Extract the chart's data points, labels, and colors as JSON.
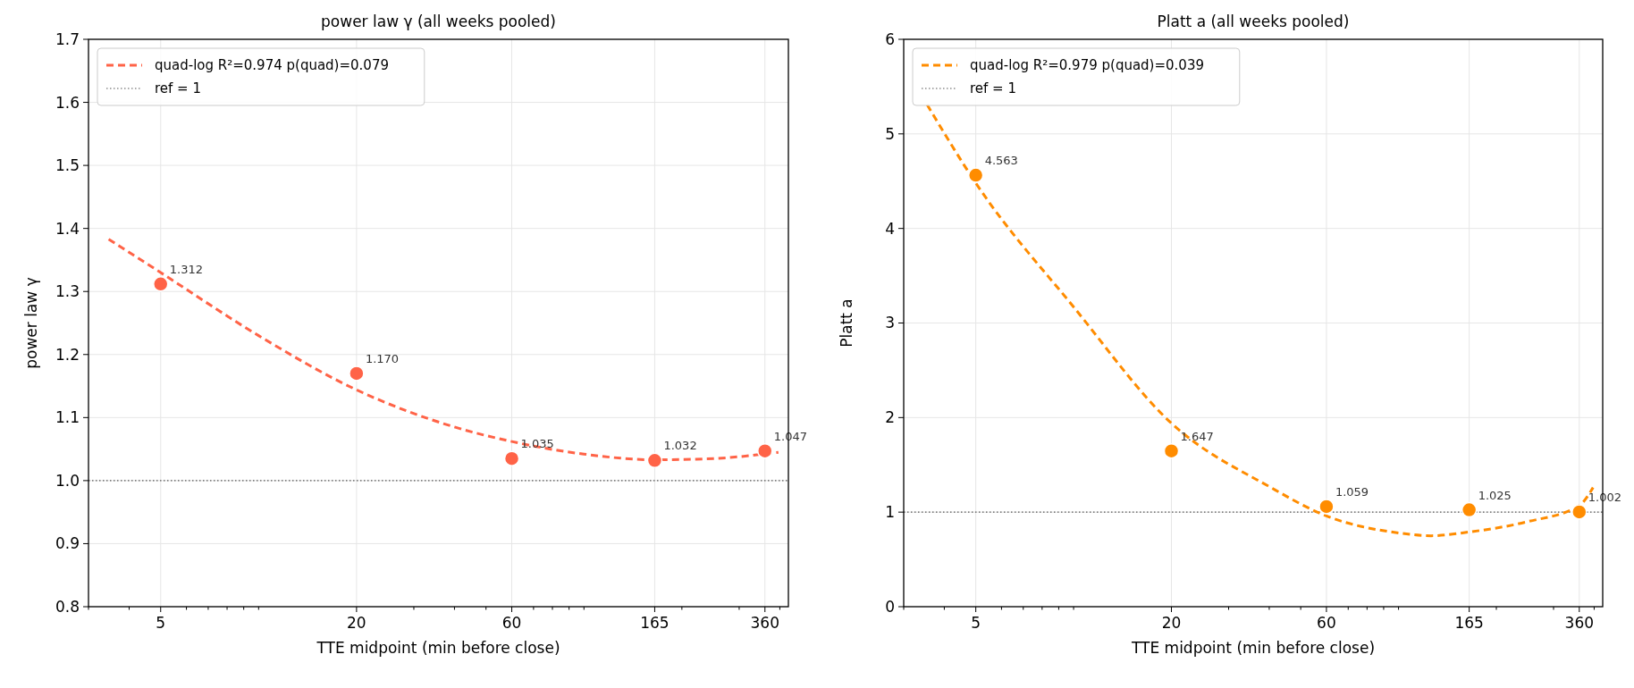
{
  "chart_data": [
    {
      "type": "scatter",
      "title": "power law  γ  (all weeks pooled)",
      "xlabel": "TTE midpoint (min before close)",
      "ylabel": "power law  γ",
      "log": "x",
      "grid": true,
      "legend": "top left",
      "marker": "circle",
      "xlim": [
        3,
        425
      ],
      "xticks": [
        {
          "value": 3,
          "label": null
        },
        {
          "value": 4,
          "label": null
        },
        5,
        {
          "value": 6,
          "label": null
        },
        {
          "value": 7,
          "label": null
        },
        {
          "value": 8,
          "label": null
        },
        {
          "value": 9,
          "label": null
        },
        {
          "value": 10,
          "label": null
        },
        20,
        {
          "value": 30,
          "label": null
        },
        {
          "value": 40,
          "label": null
        },
        {
          "value": 50,
          "label": null
        },
        60,
        {
          "value": 70,
          "label": null
        },
        {
          "value": 80,
          "label": null
        },
        {
          "value": 90,
          "label": null
        },
        {
          "value": 100,
          "label": null
        },
        165,
        {
          "value": 200,
          "label": null
        },
        {
          "value": 300,
          "label": null
        },
        360,
        {
          "value": 400,
          "label": null
        }
      ],
      "ylim": [
        0.8,
        1.7
      ],
      "yticks": [
        {
          "value": 0.8,
          "label": "0.8"
        },
        {
          "value": 0.9,
          "label": "0.9"
        },
        {
          "value": 1.0,
          "label": "1.0"
        },
        {
          "value": 1.1,
          "label": "1.1"
        },
        {
          "value": 1.2,
          "label": "1.2"
        },
        {
          "value": 1.3,
          "label": "1.3"
        },
        {
          "value": 1.4,
          "label": "1.4"
        },
        {
          "value": 1.5,
          "label": "1.5"
        },
        {
          "value": 1.6,
          "label": "1.6"
        },
        {
          "value": 1.7,
          "label": "1.7"
        }
      ],
      "ref_lines": [
        {
          "axis": "y",
          "value": 1,
          "label": "ref = 1",
          "color": "#555555",
          "line_style": "dotted"
        }
      ],
      "series": [
        {
          "type": "line",
          "name": "quad-log  R²=0.974  p(quad)=0.079",
          "color": "#ff6347",
          "line_style": "dashed",
          "marker": "none",
          "x": [
            3.46,
            5,
            10,
            20,
            40,
            60,
            100,
            165,
            250,
            396
          ],
          "values": [
            1.383,
            1.33,
            1.23,
            1.144,
            1.085,
            1.062,
            1.042,
            1.033,
            1.035,
            1.045
          ]
        },
        {
          "color": "#ff6347",
          "x": [
            5,
            20,
            60,
            165,
            360
          ],
          "values": [
            1.312,
            1.17,
            1.035,
            1.032,
            1.047
          ],
          "value_labels": [
            "1.312",
            "1.170",
            "1.035",
            "1.032",
            "1.047"
          ]
        }
      ]
    },
    {
      "type": "scatter",
      "title": "Platt  a  (all weeks pooled)",
      "xlabel": "TTE midpoint (min before close)",
      "ylabel": "Platt  a",
      "log": "x",
      "grid": true,
      "legend": "top left",
      "marker": "circle",
      "xlim": [
        3,
        425
      ],
      "xticks": [
        {
          "value": 3,
          "label": null
        },
        {
          "value": 4,
          "label": null
        },
        5,
        {
          "value": 6,
          "label": null
        },
        {
          "value": 7,
          "label": null
        },
        {
          "value": 8,
          "label": null
        },
        {
          "value": 9,
          "label": null
        },
        {
          "value": 10,
          "label": null
        },
        20,
        {
          "value": 30,
          "label": null
        },
        {
          "value": 40,
          "label": null
        },
        {
          "value": 50,
          "label": null
        },
        60,
        {
          "value": 70,
          "label": null
        },
        {
          "value": 80,
          "label": null
        },
        {
          "value": 90,
          "label": null
        },
        {
          "value": 100,
          "label": null
        },
        165,
        {
          "value": 200,
          "label": null
        },
        {
          "value": 300,
          "label": null
        },
        360,
        {
          "value": 400,
          "label": null
        }
      ],
      "ylim": [
        0,
        6
      ],
      "yticks": [
        0,
        1,
        2,
        3,
        4,
        5,
        6
      ],
      "ref_lines": [
        {
          "axis": "y",
          "value": 1,
          "label": "ref = 1",
          "color": "#555555",
          "line_style": "dotted"
        }
      ],
      "series": [
        {
          "type": "line",
          "name": "quad-log  R²=0.979  p(quad)=0.039",
          "color": "#ff8c00",
          "line_style": "dashed",
          "marker": "none",
          "x": [
            3.54,
            5,
            10,
            20,
            40,
            60,
            100,
            126,
            165,
            250,
            360,
            397
          ],
          "values": [
            5.31,
            4.48,
            3.17,
            1.94,
            1.27,
            0.96,
            0.78,
            0.75,
            0.79,
            0.9,
            1.07,
            1.26
          ]
        },
        {
          "color": "#ff8c00",
          "x": [
            5,
            20,
            60,
            165,
            360
          ],
          "values": [
            4.563,
            1.647,
            1.059,
            1.025,
            1.002
          ],
          "value_labels": [
            "4.563",
            "1.647",
            "1.059",
            "1.025",
            "1.002"
          ]
        }
      ]
    }
  ]
}
